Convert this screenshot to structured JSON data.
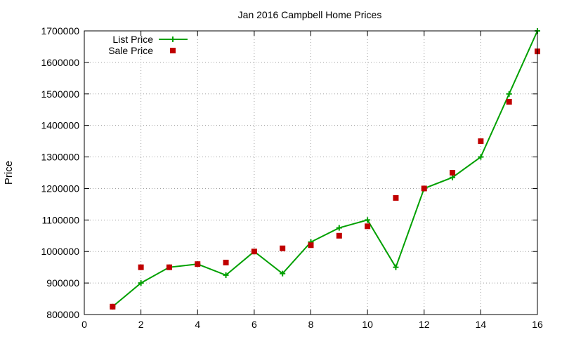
{
  "chart_data": {
    "type": "line",
    "title": "Jan 2016 Campbell Home Prices",
    "xlabel": "",
    "ylabel": "Price",
    "xlim": [
      0,
      16
    ],
    "ylim": [
      800000,
      1700000
    ],
    "x_ticks": [
      "0",
      "2",
      "4",
      "6",
      "8",
      "10",
      "12",
      "14",
      "16"
    ],
    "y_ticks": [
      "800000",
      "900000",
      "1000000",
      "1100000",
      "1200000",
      "1300000",
      "1400000",
      "1500000",
      "1600000",
      "1700000"
    ],
    "grid": true,
    "legend_position": "top-left",
    "series": [
      {
        "name": "List Price",
        "kind": "line-with-plus-markers",
        "color": "#00a000",
        "x": [
          1,
          2,
          3,
          4,
          5,
          6,
          7,
          8,
          9,
          10,
          11,
          12,
          13,
          14,
          15,
          16
        ],
        "y": [
          825000,
          900000,
          950000,
          960000,
          925000,
          1000000,
          930000,
          1030000,
          1075000,
          1100000,
          950000,
          1200000,
          1235000,
          1300000,
          1500000,
          1700000
        ]
      },
      {
        "name": "Sale Price",
        "kind": "square-markers",
        "color": "#c00000",
        "x": [
          1,
          2,
          3,
          4,
          5,
          6,
          7,
          8,
          9,
          10,
          11,
          12,
          13,
          14,
          15,
          16
        ],
        "y": [
          825000,
          950000,
          950000,
          960000,
          965000,
          1000000,
          1010000,
          1020000,
          1050000,
          1080000,
          1170000,
          1200000,
          1250000,
          1350000,
          1475000,
          1635000
        ]
      }
    ]
  }
}
